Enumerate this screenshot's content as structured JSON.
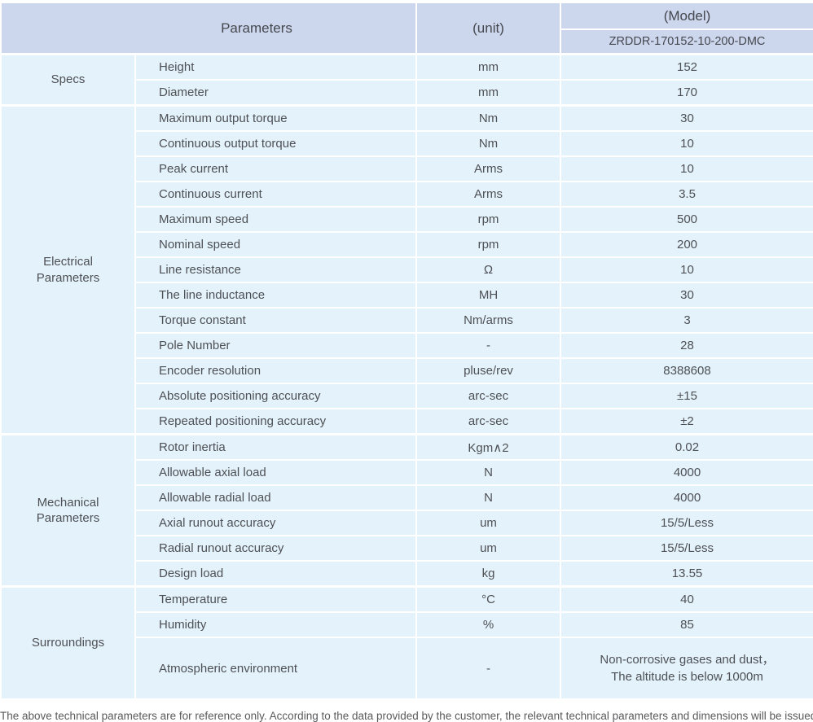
{
  "colors": {
    "header_bg": "#ccd6ec",
    "row_bg": "#e4f2fb",
    "text": "#4b4e54",
    "note_text": "#58595b"
  },
  "header": {
    "parameters_label": "Parameters",
    "unit_label": "(unit)",
    "model_label": "(Model)",
    "model_value": "ZRDDR-170152-10-200-DMC"
  },
  "groups": [
    {
      "label": "Specs",
      "rows": [
        {
          "param": "Height",
          "unit": "mm",
          "value": "152"
        },
        {
          "param": "Diameter",
          "unit": "mm",
          "value": "170"
        }
      ]
    },
    {
      "label": "Electrical\nParameters",
      "rows": [
        {
          "param": "Maximum output torque",
          "unit": "Nm",
          "value": "30"
        },
        {
          "param": "Continuous output torque",
          "unit": "Nm",
          "value": "10"
        },
        {
          "param": "Peak current",
          "unit": "Arms",
          "value": "10"
        },
        {
          "param": "Continuous current",
          "unit": "Arms",
          "value": "3.5"
        },
        {
          "param": "Maximum speed",
          "unit": "rpm",
          "value": "500"
        },
        {
          "param": "Nominal speed",
          "unit": "rpm",
          "value": "200"
        },
        {
          "param": "Line resistance",
          "unit": "Ω",
          "value": "10"
        },
        {
          "param": "The line inductance",
          "unit": "MH",
          "value": "30"
        },
        {
          "param": "Torque constant",
          "unit": "Nm/arms",
          "value": "3"
        },
        {
          "param": "Pole Number",
          "unit": "-",
          "value": "28"
        },
        {
          "param": "Encoder resolution",
          "unit": "pluse/rev",
          "value": "8388608"
        },
        {
          "param": "Absolute positioning accuracy",
          "unit": "arc-sec",
          "value": "±15"
        },
        {
          "param": "Repeated positioning accuracy",
          "unit": "arc-sec",
          "value": "±2"
        }
      ]
    },
    {
      "label": "Mechanical\nParameters",
      "rows": [
        {
          "param": "Rotor inertia",
          "unit": "Kgm∧2",
          "value": "0.02"
        },
        {
          "param": "Allowable axial load",
          "unit": "N",
          "value": "4000"
        },
        {
          "param": "Allowable radial load",
          "unit": "N",
          "value": "4000"
        },
        {
          "param": "Axial runout accuracy",
          "unit": "um",
          "value": "15/5/Less"
        },
        {
          "param": "Radial runout accuracy",
          "unit": "um",
          "value": "15/5/Less"
        },
        {
          "param": "Design load",
          "unit": "kg",
          "value": "13.55"
        }
      ]
    },
    {
      "label": "Surroundings",
      "rows": [
        {
          "param": "Temperature",
          "unit": "°C",
          "value": "40"
        },
        {
          "param": "Humidity",
          "unit": "%",
          "value": "85"
        },
        {
          "param": "Atmospheric environment",
          "unit": "-",
          "value": "Non-corrosive gases and dust，\nThe altitude is below 1000m"
        }
      ]
    }
  ],
  "footnote": "The above technical parameters are for reference only. According to the data provided by the customer, the relevant technical parameters and dimensions will be issued."
}
